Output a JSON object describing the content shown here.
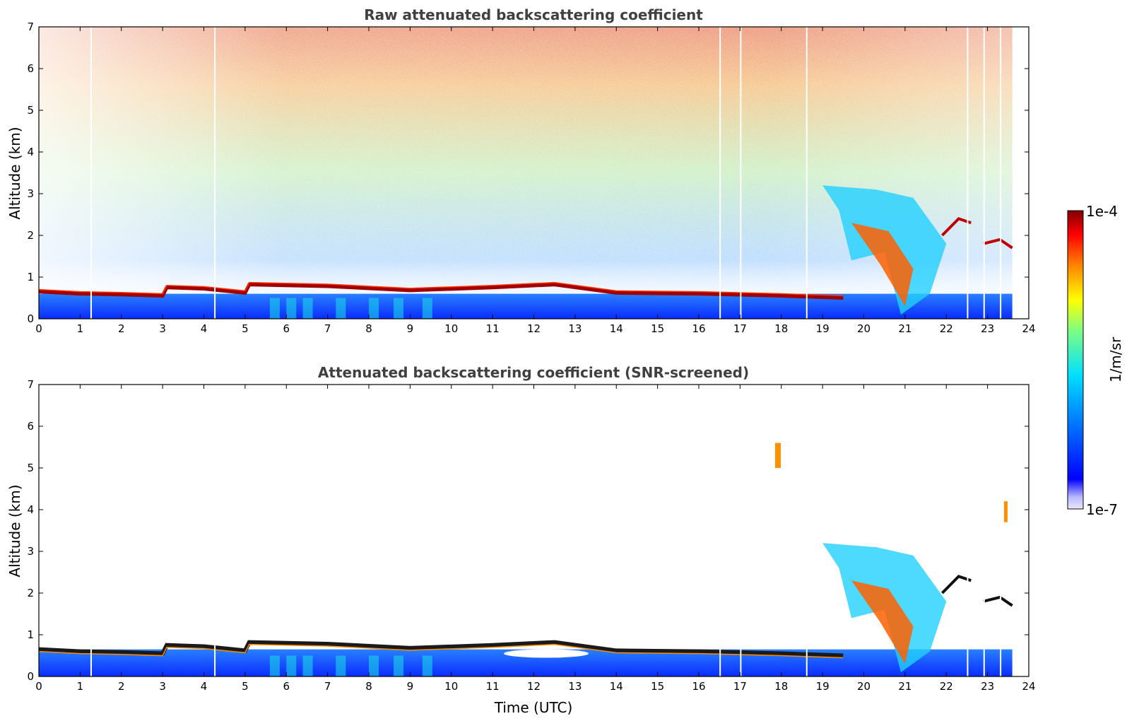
{
  "chart_data": [
    {
      "type": "heatmap",
      "title": "Raw attenuated backscattering coefficient",
      "xlabel": "",
      "ylabel": "Altitude (km)",
      "xlim": [
        0,
        24
      ],
      "ylim": [
        0,
        7
      ],
      "xticks": [
        0,
        1,
        2,
        3,
        4,
        5,
        6,
        7,
        8,
        9,
        10,
        11,
        12,
        13,
        14,
        15,
        16,
        17,
        18,
        19,
        20,
        21,
        22,
        23,
        24
      ],
      "yticks": [
        0,
        1,
        2,
        3,
        4,
        5,
        6,
        7
      ],
      "data_end_hour": 23.6,
      "cloud_base_km": [
        {
          "t": 0,
          "z": 0.65
        },
        {
          "t": 1,
          "z": 0.6
        },
        {
          "t": 2,
          "z": 0.58
        },
        {
          "t": 3,
          "z": 0.55
        },
        {
          "t": 3.1,
          "z": 0.75
        },
        {
          "t": 4,
          "z": 0.72
        },
        {
          "t": 5,
          "z": 0.62
        },
        {
          "t": 5.1,
          "z": 0.82
        },
        {
          "t": 7,
          "z": 0.78
        },
        {
          "t": 9,
          "z": 0.68
        },
        {
          "t": 11,
          "z": 0.75
        },
        {
          "t": 12.5,
          "z": 0.82
        },
        {
          "t": 14,
          "z": 0.62
        },
        {
          "t": 16,
          "z": 0.6
        },
        {
          "t": 18,
          "z": 0.55
        },
        {
          "t": 19.5,
          "z": 0.5
        }
      ]
    },
    {
      "type": "heatmap",
      "title": "Attenuated backscattering coefficient (SNR-screened)",
      "xlabel": "Time (UTC)",
      "ylabel": "Altitude (km)",
      "xlim": [
        0,
        24
      ],
      "ylim": [
        0,
        7
      ],
      "xticks": [
        0,
        1,
        2,
        3,
        4,
        5,
        6,
        7,
        8,
        9,
        10,
        11,
        12,
        13,
        14,
        15,
        16,
        17,
        18,
        19,
        20,
        21,
        22,
        23,
        24
      ],
      "yticks": [
        0,
        1,
        2,
        3,
        4,
        5,
        6,
        7
      ],
      "data_end_hour": 23.6
    }
  ],
  "colorbar": {
    "label": "1/m/sr",
    "max_label": "1e-4",
    "min_label": "1e-7",
    "colormap": "jet",
    "colors": [
      "#e8e8f8",
      "#b8b8ff",
      "#0000ff",
      "#0080ff",
      "#00e0ff",
      "#80ff80",
      "#ffff00",
      "#ff8000",
      "#ff0000",
      "#800000"
    ]
  }
}
